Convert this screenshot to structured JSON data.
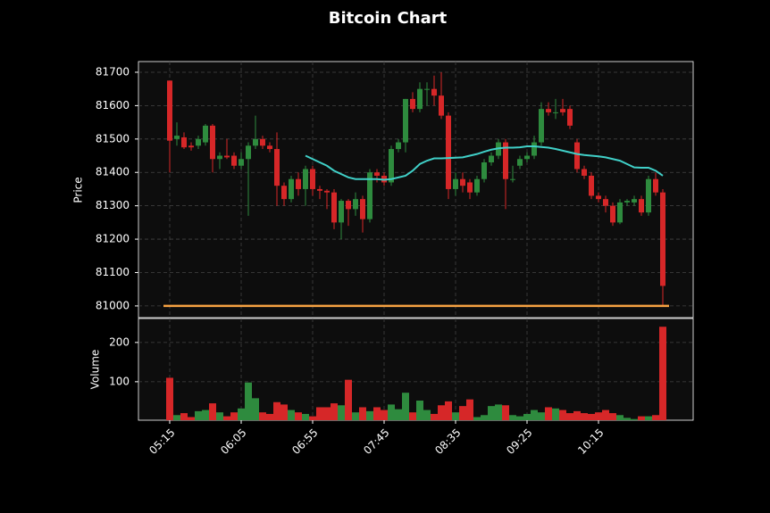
{
  "chart_data": {
    "type": "candlestick",
    "title": "Bitcoin Chart",
    "categories": [
      "05:15",
      null,
      null,
      null,
      null,
      null,
      null,
      null,
      null,
      null,
      "06:05",
      null,
      null,
      null,
      null,
      null,
      null,
      null,
      null,
      null,
      "06:55",
      null,
      null,
      null,
      null,
      null,
      null,
      null,
      null,
      null,
      "07:45",
      null,
      null,
      null,
      null,
      null,
      null,
      null,
      null,
      null,
      "08:35",
      null,
      null,
      null,
      null,
      null,
      null,
      null,
      null,
      null,
      "09:25",
      null,
      null,
      null,
      null,
      null,
      null,
      null,
      null,
      null,
      "10:15",
      null,
      null,
      null,
      null,
      null,
      null,
      null,
      null,
      null
    ],
    "open": [
      81675,
      81500,
      81505,
      81480,
      81480,
      81490,
      81540,
      81440,
      81450,
      81450,
      81420,
      81440,
      81480,
      81500,
      81480,
      81470,
      81360,
      81320,
      81380,
      81350,
      81410,
      81350,
      81345,
      81340,
      81250,
      81315,
      81290,
      81320,
      81260,
      81400,
      81390,
      81370,
      81470,
      81490,
      81620,
      81590,
      81650,
      81650,
      81630,
      81570,
      81350,
      81380,
      81370,
      81340,
      81380,
      81430,
      81450,
      81490,
      81380,
      81420,
      81440,
      81450,
      81490,
      81590,
      81580,
      81590,
      81590,
      81490,
      81410,
      81390,
      81330,
      81320,
      81300,
      81250,
      81310,
      81310,
      81320,
      81280,
      81380,
      81340
    ],
    "high": [
      81675,
      81550,
      81520,
      81490,
      81510,
      81545,
      81545,
      81460,
      81500,
      81460,
      81460,
      81490,
      81570,
      81510,
      81490,
      81520,
      81370,
      81390,
      81400,
      81420,
      81420,
      81360,
      81350,
      81350,
      81320,
      81320,
      81340,
      81330,
      81410,
      81410,
      81400,
      81480,
      81500,
      81620,
      81640,
      81670,
      81670,
      81690,
      81700,
      81580,
      81400,
      81400,
      81380,
      81390,
      81440,
      81460,
      81500,
      81500,
      81420,
      81450,
      81460,
      81510,
      81610,
      81610,
      81620,
      81620,
      81600,
      81500,
      81420,
      81400,
      81340,
      81330,
      81310,
      81320,
      81320,
      81330,
      81330,
      81390,
      81400,
      81350
    ],
    "low": [
      81400,
      81480,
      81470,
      81465,
      81470,
      81480,
      81400,
      81410,
      81440,
      81410,
      81410,
      81270,
      81470,
      81470,
      81460,
      81300,
      81300,
      81310,
      81330,
      81300,
      81330,
      81320,
      81290,
      81230,
      81200,
      81240,
      81270,
      81220,
      81250,
      81370,
      81360,
      81360,
      81460,
      81460,
      81580,
      81580,
      81600,
      81600,
      81560,
      81320,
      81330,
      81340,
      81320,
      81330,
      81370,
      81420,
      81440,
      81290,
      81370,
      81410,
      81430,
      81440,
      81480,
      81570,
      81560,
      81570,
      81530,
      81400,
      81380,
      81320,
      81310,
      81280,
      81240,
      81245,
      81300,
      81300,
      81270,
      81270,
      81330,
      81000
    ],
    "close": [
      81495,
      81510,
      81475,
      81475,
      81500,
      81540,
      81440,
      81450,
      81445,
      81420,
      81440,
      81480,
      81500,
      81480,
      81470,
      81360,
      81320,
      81380,
      81350,
      81410,
      81350,
      81345,
      81340,
      81250,
      81315,
      81290,
      81320,
      81260,
      81400,
      81390,
      81370,
      81470,
      81490,
      81620,
      81590,
      81650,
      81650,
      81630,
      81570,
      81350,
      81380,
      81360,
      81340,
      81380,
      81430,
      81450,
      81490,
      81380,
      81380,
      81440,
      81450,
      81490,
      81590,
      81580,
      81580,
      81580,
      81540,
      81410,
      81390,
      81330,
      81320,
      81300,
      81250,
      81310,
      81315,
      81320,
      81280,
      81380,
      81340,
      81060
    ],
    "up_color": "#2e8b3e",
    "down_color": "#d62728",
    "ylabel": "Price",
    "ylim": [
      80965,
      81732
    ],
    "yticks": [
      81000,
      81100,
      81200,
      81300,
      81400,
      81500,
      81600,
      81700
    ],
    "grid": true,
    "hline": {
      "value": 81000,
      "color": "#f5a142"
    },
    "ma": {
      "color": "#40d0c8",
      "values": [
        null,
        null,
        null,
        null,
        null,
        null,
        null,
        null,
        null,
        null,
        null,
        null,
        null,
        null,
        null,
        null,
        null,
        null,
        null,
        81450,
        81440,
        81430,
        81420,
        81405,
        81395,
        81385,
        81380,
        81380,
        81380,
        81380,
        81378,
        81380,
        81385,
        81390,
        81405,
        81425,
        81435,
        81442,
        81442,
        81443,
        81444,
        81445,
        81450,
        81455,
        81462,
        81468,
        81472,
        81474,
        81474,
        81475,
        81478,
        81478,
        81476,
        81474,
        81470,
        81465,
        81460,
        81455,
        81452,
        81450,
        81448,
        81445,
        81440,
        81435,
        81425,
        81415,
        81414,
        81414,
        81405,
        81390
      ]
    },
    "volume": {
      "ylabel": "Volume",
      "ylim": [
        2,
        261
      ],
      "yticks": [
        100,
        200
      ],
      "values": [
        110,
        15,
        20,
        10,
        25,
        28,
        45,
        22,
        12,
        22,
        32,
        98,
        58,
        22,
        18,
        48,
        42,
        28,
        22,
        18,
        12,
        35,
        35,
        45,
        40,
        105,
        22,
        35,
        25,
        35,
        28,
        42,
        30,
        72,
        22,
        52,
        28,
        18,
        40,
        50,
        22,
        38,
        55,
        10,
        15,
        38,
        42,
        40,
        15,
        12,
        18,
        28,
        22,
        35,
        32,
        28,
        20,
        25,
        20,
        18,
        22,
        28,
        20,
        15,
        8,
        5,
        12,
        12,
        15,
        240
      ]
    }
  }
}
